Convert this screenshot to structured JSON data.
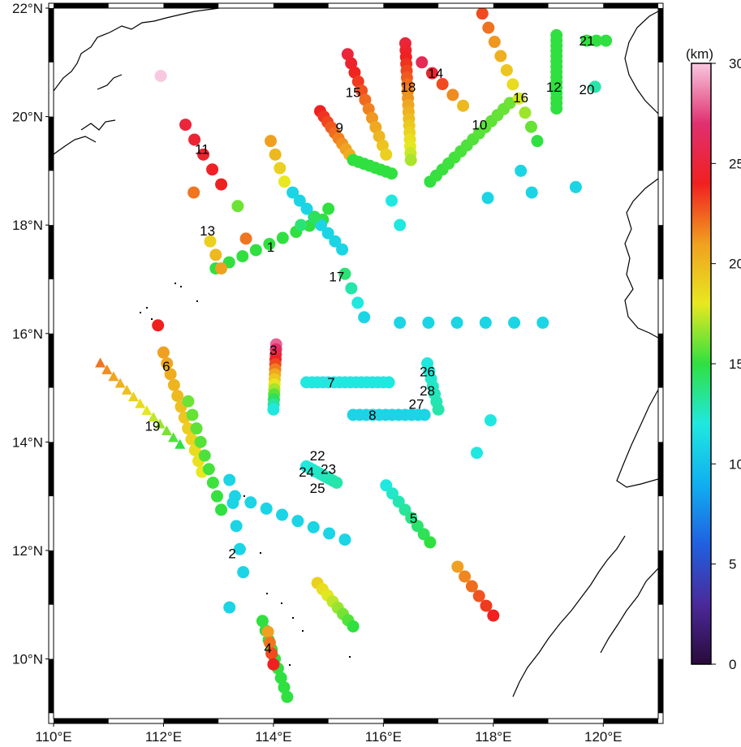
{
  "map": {
    "lon_range": [
      110,
      121
    ],
    "lat_range": [
      8.9,
      22
    ],
    "lon_ticks": [
      {
        "value": 110,
        "label": "110°E"
      },
      {
        "value": 112,
        "label": "112°E"
      },
      {
        "value": 114,
        "label": "114°E"
      },
      {
        "value": 116,
        "label": "116°E"
      },
      {
        "value": 118,
        "label": "118°E"
      },
      {
        "value": 120,
        "label": "120°E"
      }
    ],
    "lat_ticks": [
      {
        "value": 22,
        "label": "22°N"
      },
      {
        "value": 20,
        "label": "20°N"
      },
      {
        "value": 18,
        "label": "18°N"
      },
      {
        "value": 16,
        "label": "16°N"
      },
      {
        "value": 14,
        "label": "14°N"
      },
      {
        "value": 12,
        "label": "12°N"
      },
      {
        "value": 10,
        "label": "10°N"
      }
    ],
    "frame_style": "alternating black/white fancy frame",
    "coastline_color": "#000000"
  },
  "colorbar": {
    "unit_label": "(km)",
    "min": 0,
    "max": 30,
    "ticks": [
      {
        "value": 0,
        "label": "0"
      },
      {
        "value": 5,
        "label": "5"
      },
      {
        "value": 10,
        "label": "10"
      },
      {
        "value": 15,
        "label": "15"
      },
      {
        "value": 20,
        "label": "20"
      },
      {
        "value": 25,
        "label": "25"
      },
      {
        "value": 30,
        "label": "30"
      }
    ],
    "palette": [
      "#2a0a3a",
      "#4a2a9a",
      "#2060e0",
      "#10b0f0",
      "#20e8e0",
      "#30e040",
      "#e8e820",
      "#f0a020",
      "#f02020",
      "#e03070",
      "#f8c8e0"
    ]
  },
  "chart_data": {
    "type": "scatter",
    "title": "",
    "xlabel": "",
    "ylabel": "",
    "value_unit": "km",
    "profile_labels": [
      {
        "id": "1",
        "lon": 113.95,
        "lat": 17.6
      },
      {
        "id": "2",
        "lon": 113.25,
        "lat": 11.95
      },
      {
        "id": "3",
        "lon": 114.0,
        "lat": 15.7
      },
      {
        "id": "4",
        "lon": 113.9,
        "lat": 10.2
      },
      {
        "id": "5",
        "lon": 116.55,
        "lat": 12.6
      },
      {
        "id": "6",
        "lon": 112.05,
        "lat": 15.4
      },
      {
        "id": "7",
        "lon": 115.05,
        "lat": 15.1
      },
      {
        "id": "8",
        "lon": 115.8,
        "lat": 14.5
      },
      {
        "id": "9",
        "lon": 115.2,
        "lat": 19.8
      },
      {
        "id": "10",
        "lon": 117.75,
        "lat": 19.85
      },
      {
        "id": "11",
        "lon": 112.7,
        "lat": 19.4
      },
      {
        "id": "12",
        "lon": 119.1,
        "lat": 20.55
      },
      {
        "id": "13",
        "lon": 112.8,
        "lat": 17.9
      },
      {
        "id": "14",
        "lon": 116.95,
        "lat": 20.8
      },
      {
        "id": "15",
        "lon": 115.45,
        "lat": 20.45
      },
      {
        "id": "16",
        "lon": 118.5,
        "lat": 20.35
      },
      {
        "id": "17",
        "lon": 115.15,
        "lat": 17.05
      },
      {
        "id": "18",
        "lon": 116.45,
        "lat": 20.55
      },
      {
        "id": "19",
        "lon": 111.8,
        "lat": 14.3
      },
      {
        "id": "20",
        "lon": 119.7,
        "lat": 20.5
      },
      {
        "id": "21",
        "lon": 119.7,
        "lat": 21.4
      },
      {
        "id": "22",
        "lon": 114.8,
        "lat": 13.75
      },
      {
        "id": "23",
        "lon": 115.0,
        "lat": 13.5
      },
      {
        "id": "24",
        "lon": 114.6,
        "lat": 13.45
      },
      {
        "id": "25",
        "lon": 114.8,
        "lat": 13.15
      },
      {
        "id": "26",
        "lon": 116.8,
        "lat": 15.3
      },
      {
        "id": "27",
        "lon": 116.6,
        "lat": 14.7
      },
      {
        "id": "28",
        "lon": 116.8,
        "lat": 14.95
      }
    ],
    "station_segments": [
      {
        "profile": "1",
        "start": [
          112.95,
          17.2
        ],
        "end": [
          114.9,
          18.1
        ],
        "count": 9,
        "value_start": 15,
        "value_end": 15
      },
      {
        "profile": "1b",
        "start": [
          114.35,
          18.6
        ],
        "end": [
          115.25,
          17.55
        ],
        "count": 8,
        "value_start": 11,
        "value_end": 11
      },
      {
        "profile": "1c",
        "start": [
          113.95,
          19.55
        ],
        "end": [
          114.2,
          18.8
        ],
        "count": 4,
        "value_start": 21,
        "value_end": 18
      },
      {
        "profile": "1d",
        "start": [
          114.5,
          18.0
        ],
        "end": [
          115.0,
          18.3
        ],
        "count": 3,
        "value_start": 14,
        "value_end": 15
      },
      {
        "profile": "2",
        "start": [
          113.2,
          13.3
        ],
        "end": [
          113.45,
          11.6
        ],
        "count": 5,
        "value_start": 11,
        "value_end": 11
      },
      {
        "profile": "2b",
        "start": [
          113.2,
          10.95
        ],
        "end": [
          113.2,
          10.95
        ],
        "count": 1,
        "value_start": 11,
        "value_end": 11
      },
      {
        "profile": "3",
        "start": [
          114.05,
          15.8
        ],
        "end": [
          114.0,
          14.6
        ],
        "count": 14,
        "value_start": 28,
        "value_end": 12
      },
      {
        "profile": "4",
        "start": [
          113.8,
          10.7
        ],
        "end": [
          114.25,
          9.3
        ],
        "count": 9,
        "value_start": 15,
        "value_end": 15
      },
      {
        "profile": "4b",
        "start": [
          113.9,
          10.5
        ],
        "end": [
          114.0,
          9.9
        ],
        "count": 4,
        "value_start": 21,
        "value_end": 24
      },
      {
        "profile": "5",
        "start": [
          116.05,
          13.2
        ],
        "end": [
          116.85,
          12.15
        ],
        "count": 8,
        "value_start": 12,
        "value_end": 15
      },
      {
        "profile": "5b",
        "start": [
          117.35,
          11.7
        ],
        "end": [
          118.0,
          10.8
        ],
        "count": 6,
        "value_start": 21,
        "value_end": 24
      },
      {
        "profile": "6",
        "start": [
          112.0,
          15.65
        ],
        "end": [
          112.7,
          13.45
        ],
        "count": 12,
        "value_start": 21,
        "value_end": 18
      },
      {
        "profile": "6b",
        "start": [
          112.45,
          14.75
        ],
        "end": [
          113.05,
          12.75
        ],
        "count": 9,
        "value_start": 16,
        "value_end": 15
      },
      {
        "profile": "7",
        "start": [
          114.6,
          15.1
        ],
        "end": [
          116.1,
          15.1
        ],
        "count": 16,
        "value_start": 12,
        "value_end": 12
      },
      {
        "profile": "8",
        "start": [
          115.45,
          14.5
        ],
        "end": [
          116.75,
          14.5
        ],
        "count": 12,
        "value_start": 11,
        "value_end": 11
      },
      {
        "profile": "9",
        "start": [
          114.85,
          20.1
        ],
        "end": [
          115.45,
          19.2
        ],
        "count": 10,
        "value_start": 24,
        "value_end": 20
      },
      {
        "profile": "9b",
        "start": [
          115.45,
          19.2
        ],
        "end": [
          116.15,
          18.95
        ],
        "count": 8,
        "value_start": 15,
        "value_end": 15
      },
      {
        "profile": "10",
        "start": [
          116.85,
          18.8
        ],
        "end": [
          118.3,
          20.25
        ],
        "count": 14,
        "value_start": 15,
        "value_end": 16
      },
      {
        "profile": "11",
        "start": [
          112.4,
          19.85
        ],
        "end": [
          113.05,
          18.75
        ],
        "count": 5,
        "value_start": 25,
        "value_end": 24
      },
      {
        "profile": "11b",
        "start": [
          112.55,
          18.6
        ],
        "end": [
          112.55,
          18.6
        ],
        "count": 1,
        "value_start": 22,
        "value_end": 22
      },
      {
        "profile": "12",
        "start": [
          119.15,
          21.5
        ],
        "end": [
          119.15,
          20.15
        ],
        "count": 15,
        "value_start": 15,
        "value_end": 15
      },
      {
        "profile": "13",
        "start": [
          112.85,
          17.7
        ],
        "end": [
          113.05,
          17.2
        ],
        "count": 3,
        "value_start": 19,
        "value_end": 21
      },
      {
        "profile": "14",
        "start": [
          116.7,
          21.0
        ],
        "end": [
          117.45,
          20.2
        ],
        "count": 5,
        "value_start": 26,
        "value_end": 20
      },
      {
        "profile": "15",
        "start": [
          115.35,
          21.15
        ],
        "end": [
          116.05,
          19.3
        ],
        "count": 12,
        "value_start": 25,
        "value_end": 19
      },
      {
        "profile": "16",
        "start": [
          117.8,
          21.9
        ],
        "end": [
          118.8,
          19.55
        ],
        "count": 10,
        "value_start": 23,
        "value_end": 15
      },
      {
        "profile": "17",
        "start": [
          115.3,
          17.1
        ],
        "end": [
          115.65,
          16.3
        ],
        "count": 4,
        "value_start": 14,
        "value_end": 11
      },
      {
        "profile": "18",
        "start": [
          116.4,
          21.35
        ],
        "end": [
          116.5,
          19.2
        ],
        "count": 18,
        "value_start": 25,
        "value_end": 17
      },
      {
        "profile": "20",
        "start": [
          119.85,
          20.55
        ],
        "end": [
          119.85,
          20.55
        ],
        "count": 1,
        "value_start": 13,
        "value_end": 13
      },
      {
        "profile": "21",
        "start": [
          119.7,
          21.4
        ],
        "end": [
          120.05,
          21.4
        ],
        "count": 3,
        "value_start": 15,
        "value_end": 15
      },
      {
        "profile": "22-25",
        "start": [
          114.6,
          13.55
        ],
        "end": [
          115.15,
          13.25
        ],
        "count": 10,
        "value_start": 12,
        "value_end": 13
      },
      {
        "profile": "26-28",
        "start": [
          116.8,
          15.45
        ],
        "end": [
          117.0,
          14.6
        ],
        "count": 7,
        "value_start": 12,
        "value_end": 13
      },
      {
        "profile": "dispersed-a",
        "start": [
          116.3,
          16.2
        ],
        "end": [
          118.9,
          16.2
        ],
        "count": 6,
        "value_start": 11,
        "value_end": 11
      },
      {
        "profile": "dispersed-b",
        "start": [
          113.3,
          13.0
        ],
        "end": [
          115.3,
          12.2
        ],
        "count": 8,
        "value_start": 11,
        "value_end": 11
      },
      {
        "profile": "dispersed-c",
        "start": [
          114.8,
          11.4
        ],
        "end": [
          115.45,
          10.6
        ],
        "count": 8,
        "value_start": 19,
        "value_end": 15
      },
      {
        "profile": "dispersed-d",
        "start": [
          116.15,
          18.45
        ],
        "end": [
          116.3,
          18.0
        ],
        "count": 2,
        "value_start": 12,
        "value_end": 12
      },
      {
        "profile": "dispersed-e",
        "start": [
          117.9,
          18.5
        ],
        "end": [
          119.5,
          18.7
        ],
        "count": 3,
        "value_start": 11,
        "value_end": 11
      },
      {
        "profile": "dispersed-f",
        "start": [
          117.7,
          13.8
        ],
        "end": [
          117.95,
          14.4
        ],
        "count": 2,
        "value_start": 12,
        "value_end": 12
      },
      {
        "profile": "dispersed-g",
        "start": [
          111.9,
          16.15
        ],
        "end": [
          111.9,
          16.15
        ],
        "count": 1,
        "value_start": 24,
        "value_end": 24
      },
      {
        "profile": "dispersed-h",
        "start": [
          111.95,
          20.75
        ],
        "end": [
          111.95,
          20.75
        ],
        "count": 1,
        "value_start": 30,
        "value_end": 30
      },
      {
        "profile": "dispersed-i",
        "start": [
          113.35,
          18.35
        ],
        "end": [
          113.35,
          18.35
        ],
        "count": 1,
        "value_start": 16,
        "value_end": 16
      },
      {
        "profile": "dispersed-j",
        "start": [
          113.5,
          17.75
        ],
        "end": [
          113.5,
          17.75
        ],
        "count": 1,
        "value_start": 22,
        "value_end": 22
      },
      {
        "profile": "dispersed-k",
        "start": [
          118.5,
          19.0
        ],
        "end": [
          118.5,
          19.0
        ],
        "count": 1,
        "value_start": 11,
        "value_end": 11
      }
    ],
    "triangle_segment": {
      "profile": "19",
      "start": [
        110.85,
        15.45
      ],
      "end": [
        112.3,
        13.95
      ],
      "count": 13,
      "value_start": 22,
      "value_end": 15
    }
  }
}
